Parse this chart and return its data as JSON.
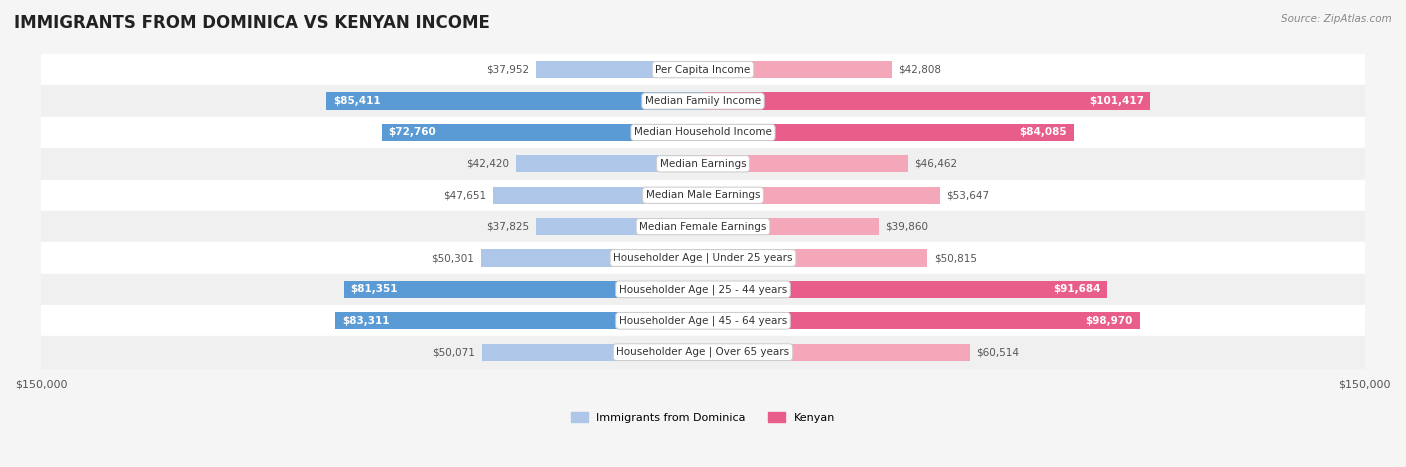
{
  "title": "IMMIGRANTS FROM DOMINICA VS KENYAN INCOME",
  "source": "Source: ZipAtlas.com",
  "categories": [
    "Per Capita Income",
    "Median Family Income",
    "Median Household Income",
    "Median Earnings",
    "Median Male Earnings",
    "Median Female Earnings",
    "Householder Age | Under 25 years",
    "Householder Age | 25 - 44 years",
    "Householder Age | 45 - 64 years",
    "Householder Age | Over 65 years"
  ],
  "dominica_values": [
    37952,
    85411,
    72760,
    42420,
    47651,
    37825,
    50301,
    81351,
    83311,
    50071
  ],
  "kenyan_values": [
    42808,
    101417,
    84085,
    46462,
    53647,
    39860,
    50815,
    91684,
    98970,
    60514
  ],
  "dominica_labels": [
    "$37,952",
    "$85,411",
    "$72,760",
    "$42,420",
    "$47,651",
    "$37,825",
    "$50,301",
    "$81,351",
    "$83,311",
    "$50,071"
  ],
  "kenyan_labels": [
    "$42,808",
    "$101,417",
    "$84,085",
    "$46,462",
    "$53,647",
    "$39,860",
    "$50,815",
    "$91,684",
    "$98,970",
    "$60,514"
  ],
  "dominica_color_light": "#aec6e8",
  "dominica_color_dark": "#5b9bd5",
  "kenyan_color_light": "#f4a7b9",
  "kenyan_color_dark": "#e85d8a",
  "bar_height": 0.55,
  "max_value": 150000,
  "bg_color": "#f5f5f5",
  "row_bg_even": "#ffffff",
  "row_bg_odd": "#f0f0f0",
  "legend_dominica": "Immigrants from Dominica",
  "legend_kenyan": "Kenyan"
}
